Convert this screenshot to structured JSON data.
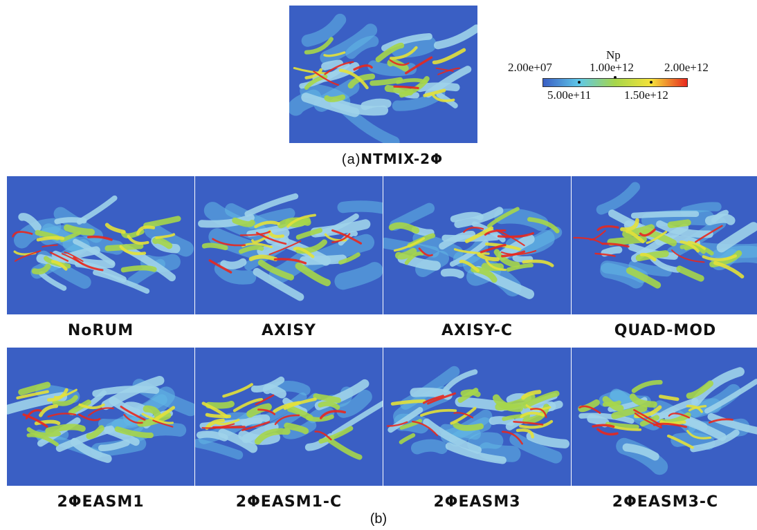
{
  "top_panel": {
    "caption_prefix": "(a)",
    "caption_name": "NTMIX-2Φ"
  },
  "colorbar": {
    "title": "Np",
    "top_ticks": [
      "2.00e+07",
      "1.00e+12",
      "2.00e+12"
    ],
    "bottom_ticks": [
      "5.00e+11",
      "1.50e+12"
    ],
    "colors": [
      "#3a5fc4",
      "#5fc8e8",
      "#a6d64a",
      "#f5e23a",
      "#e8281e"
    ]
  },
  "row1_labels": [
    "NoRUM",
    "AXISY",
    "AXISY-C",
    "QUAD-MOD"
  ],
  "row2_labels": [
    "2ΦEASM1",
    "2ΦEASM1-C",
    "2ΦEASM3",
    "2ΦEASM3-C"
  ],
  "bottom_caption": "(b)"
}
